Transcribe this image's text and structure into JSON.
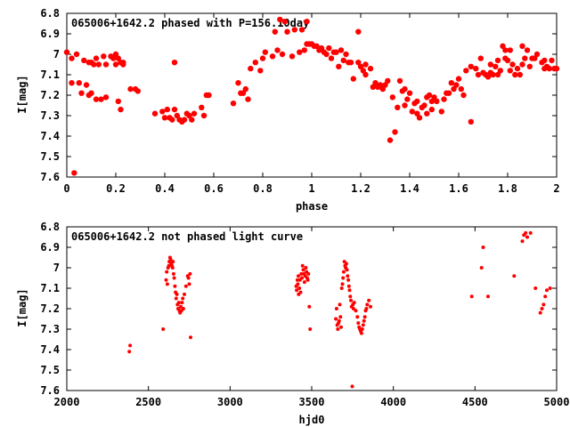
{
  "colors": {
    "points": "#ff0000",
    "axes": "#000000",
    "background": "#ffffff"
  },
  "chart_data": [
    {
      "type": "scatter",
      "title": "065006+1642.2 phased with P=156.10day",
      "xlabel": "phase",
      "ylabel": "I[mag]",
      "xlim": [
        0,
        2
      ],
      "ylim": [
        7.6,
        6.8
      ],
      "y_inverted": true,
      "xticks": [
        "0",
        "0.2",
        "0.4",
        "0.6",
        "0.8",
        "1",
        "1.2",
        "1.4",
        "1.6",
        "1.8",
        "2"
      ],
      "yticks": [
        "6.8",
        "6.9",
        "7",
        "7.1",
        "7.2",
        "7.3",
        "7.4",
        "7.5",
        "7.6"
      ],
      "marker": "filled-circle-large",
      "points": [
        [
          0.0,
          6.99
        ],
        [
          0.02,
          7.02
        ],
        [
          0.02,
          7.14
        ],
        [
          0.03,
          7.58
        ],
        [
          0.04,
          7.0
        ],
        [
          0.05,
          7.14
        ],
        [
          0.06,
          7.19
        ],
        [
          0.07,
          7.03
        ],
        [
          0.08,
          7.15
        ],
        [
          0.09,
          7.2
        ],
        [
          0.09,
          7.04
        ],
        [
          0.1,
          7.04
        ],
        [
          0.1,
          7.19
        ],
        [
          0.11,
          7.05
        ],
        [
          0.12,
          7.02
        ],
        [
          0.12,
          7.22
        ],
        [
          0.13,
          7.05
        ],
        [
          0.14,
          7.22
        ],
        [
          0.15,
          7.01
        ],
        [
          0.16,
          7.05
        ],
        [
          0.16,
          7.21
        ],
        [
          0.18,
          7.01
        ],
        [
          0.19,
          7.02
        ],
        [
          0.2,
          7.0
        ],
        [
          0.2,
          7.05
        ],
        [
          0.21,
          7.23
        ],
        [
          0.21,
          7.02
        ],
        [
          0.22,
          7.04
        ],
        [
          0.22,
          7.27
        ],
        [
          0.23,
          7.04
        ],
        [
          0.23,
          7.05
        ],
        [
          0.26,
          7.17
        ],
        [
          0.28,
          7.17
        ],
        [
          0.29,
          7.18
        ],
        [
          0.36,
          7.29
        ],
        [
          0.39,
          7.28
        ],
        [
          0.4,
          7.31
        ],
        [
          0.41,
          7.27
        ],
        [
          0.42,
          7.31
        ],
        [
          0.43,
          7.32
        ],
        [
          0.44,
          7.04
        ],
        [
          0.44,
          7.27
        ],
        [
          0.45,
          7.3
        ],
        [
          0.46,
          7.32
        ],
        [
          0.47,
          7.33
        ],
        [
          0.48,
          7.32
        ],
        [
          0.49,
          7.29
        ],
        [
          0.5,
          7.3
        ],
        [
          0.51,
          7.32
        ],
        [
          0.52,
          7.29
        ],
        [
          0.55,
          7.26
        ],
        [
          0.56,
          7.3
        ],
        [
          0.57,
          7.2
        ],
        [
          0.58,
          7.2
        ],
        [
          0.68,
          7.24
        ],
        [
          0.7,
          7.14
        ],
        [
          0.71,
          7.19
        ],
        [
          0.72,
          7.19
        ],
        [
          0.73,
          7.17
        ],
        [
          0.74,
          7.22
        ],
        [
          0.75,
          7.07
        ],
        [
          0.77,
          7.04
        ],
        [
          0.79,
          7.08
        ],
        [
          0.8,
          7.02
        ],
        [
          0.81,
          6.99
        ],
        [
          0.84,
          7.01
        ],
        [
          0.85,
          6.89
        ],
        [
          0.86,
          6.98
        ],
        [
          0.87,
          6.83
        ],
        [
          0.88,
          7.0
        ],
        [
          0.89,
          6.84
        ],
        [
          0.9,
          6.89
        ],
        [
          0.92,
          7.01
        ],
        [
          0.93,
          6.88
        ],
        [
          0.95,
          6.99
        ],
        [
          0.96,
          6.88
        ],
        [
          0.97,
          6.98
        ],
        [
          0.98,
          6.95
        ],
        [
          0.98,
          6.84
        ],
        [
          0.99,
          6.95
        ],
        [
          1.0,
          6.95
        ],
        [
          1.01,
          6.96
        ],
        [
          1.02,
          6.96
        ],
        [
          1.03,
          6.98
        ],
        [
          1.04,
          6.97
        ],
        [
          1.05,
          6.99
        ],
        [
          1.06,
          7.0
        ],
        [
          1.07,
          6.97
        ],
        [
          1.08,
          7.02
        ],
        [
          1.09,
          6.99
        ],
        [
          1.1,
          6.99
        ],
        [
          1.11,
          7.06
        ],
        [
          1.12,
          6.98
        ],
        [
          1.13,
          7.03
        ],
        [
          1.14,
          7.0
        ],
        [
          1.15,
          7.04
        ],
        [
          1.16,
          7.04
        ],
        [
          1.17,
          7.12
        ],
        [
          1.19,
          7.04
        ],
        [
          1.19,
          6.89
        ],
        [
          1.2,
          7.06
        ],
        [
          1.21,
          7.08
        ],
        [
          1.22,
          7.1
        ],
        [
          1.22,
          7.05
        ],
        [
          1.24,
          7.07
        ],
        [
          1.25,
          7.16
        ],
        [
          1.26,
          7.14
        ],
        [
          1.27,
          7.16
        ],
        [
          1.28,
          7.15
        ],
        [
          1.29,
          7.17
        ],
        [
          1.3,
          7.15
        ],
        [
          1.31,
          7.13
        ],
        [
          1.32,
          7.42
        ],
        [
          1.33,
          7.21
        ],
        [
          1.34,
          7.38
        ],
        [
          1.35,
          7.26
        ],
        [
          1.36,
          7.13
        ],
        [
          1.37,
          7.18
        ],
        [
          1.38,
          7.25
        ],
        [
          1.38,
          7.17
        ],
        [
          1.39,
          7.22
        ],
        [
          1.4,
          7.19
        ],
        [
          1.41,
          7.28
        ],
        [
          1.42,
          7.24
        ],
        [
          1.43,
          7.23
        ],
        [
          1.43,
          7.29
        ],
        [
          1.44,
          7.31
        ],
        [
          1.45,
          7.26
        ],
        [
          1.46,
          7.25
        ],
        [
          1.47,
          7.21
        ],
        [
          1.47,
          7.29
        ],
        [
          1.48,
          7.2
        ],
        [
          1.49,
          7.23
        ],
        [
          1.49,
          7.27
        ],
        [
          1.5,
          7.21
        ],
        [
          1.51,
          7.23
        ],
        [
          1.53,
          7.28
        ],
        [
          1.54,
          7.22
        ],
        [
          1.55,
          7.19
        ],
        [
          1.56,
          7.19
        ],
        [
          1.57,
          7.14
        ],
        [
          1.58,
          7.17
        ],
        [
          1.59,
          7.15
        ],
        [
          1.6,
          7.12
        ],
        [
          1.61,
          7.17
        ],
        [
          1.62,
          7.2
        ],
        [
          1.63,
          7.08
        ],
        [
          1.65,
          7.33
        ],
        [
          1.65,
          7.06
        ],
        [
          1.67,
          7.07
        ],
        [
          1.68,
          7.1
        ],
        [
          1.69,
          7.02
        ],
        [
          1.7,
          7.09
        ],
        [
          1.71,
          7.1
        ],
        [
          1.72,
          7.11
        ],
        [
          1.73,
          7.09
        ],
        [
          1.73,
          7.05
        ],
        [
          1.74,
          7.1
        ],
        [
          1.75,
          7.06
        ],
        [
          1.76,
          7.03
        ],
        [
          1.76,
          7.1
        ],
        [
          1.77,
          7.08
        ],
        [
          1.78,
          6.96
        ],
        [
          1.79,
          7.02
        ],
        [
          1.79,
          6.98
        ],
        [
          1.8,
          7.03
        ],
        [
          1.81,
          7.08
        ],
        [
          1.81,
          6.98
        ],
        [
          1.82,
          7.05
        ],
        [
          1.83,
          7.1
        ],
        [
          1.84,
          7.07
        ],
        [
          1.85,
          7.1
        ],
        [
          1.86,
          7.05
        ],
        [
          1.86,
          6.96
        ],
        [
          1.87,
          7.02
        ],
        [
          1.88,
          6.98
        ],
        [
          1.89,
          7.06
        ],
        [
          1.9,
          7.02
        ],
        [
          1.91,
          7.02
        ],
        [
          1.92,
          7.0
        ],
        [
          1.94,
          7.04
        ],
        [
          1.95,
          7.07
        ],
        [
          1.95,
          7.03
        ],
        [
          1.96,
          7.06
        ],
        [
          1.97,
          7.07
        ],
        [
          1.98,
          7.03
        ],
        [
          1.99,
          7.07
        ],
        [
          2.0,
          7.07
        ]
      ]
    },
    {
      "type": "scatter",
      "title": "065006+1642.2 not phased light curve",
      "xlabel": "hjd0",
      "ylabel": "I[mag]",
      "xlim": [
        2000,
        5000
      ],
      "ylim": [
        7.6,
        6.8
      ],
      "y_inverted": true,
      "xticks": [
        "2000",
        "2500",
        "3000",
        "3500",
        "4000",
        "4500",
        "5000"
      ],
      "yticks": [
        "6.8",
        "6.9",
        "7",
        "7.1",
        "7.2",
        "7.3",
        "7.4",
        "7.5",
        "7.6"
      ],
      "marker": "filled-circle-small",
      "points": [
        [
          2383,
          7.41
        ],
        [
          2388,
          7.38
        ],
        [
          2590,
          7.3
        ],
        [
          2608,
          7.06
        ],
        [
          2612,
          7.02
        ],
        [
          2616,
          7.08
        ],
        [
          2620,
          7.0
        ],
        [
          2625,
          6.99
        ],
        [
          2628,
          6.97
        ],
        [
          2632,
          6.95
        ],
        [
          2636,
          6.96
        ],
        [
          2640,
          6.98
        ],
        [
          2644,
          6.99
        ],
        [
          2648,
          7.0
        ],
        [
          2650,
          6.97
        ],
        [
          2654,
          7.03
        ],
        [
          2658,
          7.05
        ],
        [
          2662,
          7.09
        ],
        [
          2666,
          7.12
        ],
        [
          2670,
          7.15
        ],
        [
          2674,
          7.13
        ],
        [
          2678,
          7.18
        ],
        [
          2682,
          7.2
        ],
        [
          2686,
          7.17
        ],
        [
          2690,
          7.21
        ],
        [
          2694,
          7.22
        ],
        [
          2698,
          7.19
        ],
        [
          2702,
          7.21
        ],
        [
          2706,
          7.17
        ],
        [
          2710,
          7.15
        ],
        [
          2714,
          7.2
        ],
        [
          2720,
          7.13
        ],
        [
          2730,
          7.09
        ],
        [
          2740,
          7.04
        ],
        [
          2745,
          7.05
        ],
        [
          2750,
          7.08
        ],
        [
          2755,
          7.03
        ],
        [
          2758,
          7.34
        ],
        [
          3405,
          7.09
        ],
        [
          3408,
          7.11
        ],
        [
          3412,
          7.06
        ],
        [
          3415,
          7.08
        ],
        [
          3418,
          7.04
        ],
        [
          3420,
          7.13
        ],
        [
          3424,
          7.1
        ],
        [
          3428,
          7.06
        ],
        [
          3432,
          7.12
        ],
        [
          3436,
          7.03
        ],
        [
          3440,
          7.05
        ],
        [
          3444,
          6.99
        ],
        [
          3448,
          7.01
        ],
        [
          3452,
          7.03
        ],
        [
          3456,
          7.07
        ],
        [
          3460,
          7.04
        ],
        [
          3464,
          7.0
        ],
        [
          3468,
          7.02
        ],
        [
          3472,
          7.05
        ],
        [
          3476,
          7.06
        ],
        [
          3480,
          7.03
        ],
        [
          3485,
          7.19
        ],
        [
          3490,
          7.3
        ],
        [
          3648,
          7.25
        ],
        [
          3652,
          7.2
        ],
        [
          3656,
          7.28
        ],
        [
          3660,
          7.3
        ],
        [
          3664,
          7.27
        ],
        [
          3668,
          7.26
        ],
        [
          3672,
          7.18
        ],
        [
          3676,
          7.24
        ],
        [
          3680,
          7.29
        ],
        [
          3684,
          7.1
        ],
        [
          3688,
          7.08
        ],
        [
          3692,
          7.05
        ],
        [
          3696,
          7.02
        ],
        [
          3700,
          6.97
        ],
        [
          3704,
          6.99
        ],
        [
          3708,
          7.0
        ],
        [
          3712,
          6.98
        ],
        [
          3716,
          7.01
        ],
        [
          3720,
          7.04
        ],
        [
          3724,
          7.06
        ],
        [
          3728,
          7.09
        ],
        [
          3732,
          7.11
        ],
        [
          3736,
          7.14
        ],
        [
          3740,
          7.16
        ],
        [
          3744,
          7.19
        ],
        [
          3748,
          7.58
        ],
        [
          3752,
          7.18
        ],
        [
          3756,
          7.2
        ],
        [
          3760,
          7.17
        ],
        [
          3770,
          7.21
        ],
        [
          3780,
          7.24
        ],
        [
          3785,
          7.27
        ],
        [
          3790,
          7.29
        ],
        [
          3795,
          7.3
        ],
        [
          3800,
          7.31
        ],
        [
          3805,
          7.32
        ],
        [
          3810,
          7.3
        ],
        [
          3815,
          7.28
        ],
        [
          3820,
          7.26
        ],
        [
          3825,
          7.24
        ],
        [
          3830,
          7.21
        ],
        [
          3835,
          7.2
        ],
        [
          3840,
          7.18
        ],
        [
          3850,
          7.16
        ],
        [
          3860,
          7.19
        ],
        [
          4480,
          7.14
        ],
        [
          4540,
          7.0
        ],
        [
          4550,
          6.9
        ],
        [
          4580,
          7.14
        ],
        [
          4740,
          7.04
        ],
        [
          4790,
          6.87
        ],
        [
          4800,
          6.84
        ],
        [
          4810,
          6.83
        ],
        [
          4820,
          6.85
        ],
        [
          4840,
          6.83
        ],
        [
          4870,
          7.1
        ],
        [
          4900,
          7.22
        ],
        [
          4910,
          7.2
        ],
        [
          4920,
          7.18
        ],
        [
          4930,
          7.14
        ],
        [
          4940,
          7.11
        ],
        [
          4960,
          7.1
        ]
      ]
    }
  ]
}
